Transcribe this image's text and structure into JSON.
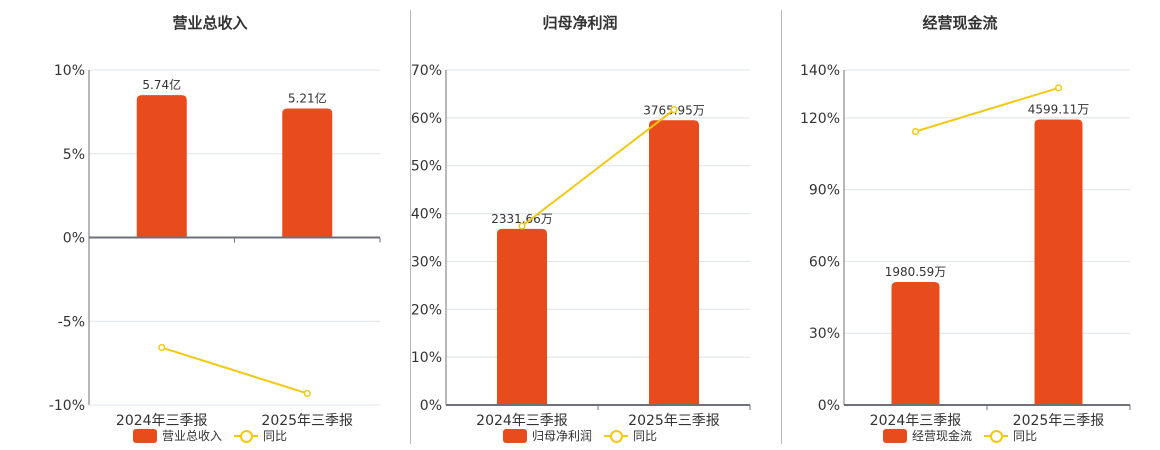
{
  "colors": {
    "bar": "#E84C1C",
    "line": "#F2C811",
    "grid": "#dde3ec",
    "axis": "#6e7079",
    "text": "#333333"
  },
  "charts": [
    {
      "title": "营业总收入",
      "legend": {
        "bar": "营业总收入",
        "line": "同比"
      }
    },
    {
      "title": "归母净利润",
      "legend": {
        "bar": "归母净利润",
        "line": "同比"
      }
    },
    {
      "title": "经营现金流",
      "legend": {
        "bar": "经营现金流",
        "line": "同比"
      }
    }
  ],
  "chart_data": [
    {
      "type": "bar+line",
      "title": "营业总收入",
      "categories": [
        "2024年三季报",
        "2025年三季报"
      ],
      "series": [
        {
          "name": "营业总收入",
          "type": "bar",
          "labels": [
            "5.74亿",
            "5.21亿"
          ],
          "values_yi": [
            5.74,
            5.21
          ],
          "bar_height_pct_axis": [
            8.5,
            7.7
          ]
        },
        {
          "name": "同比",
          "type": "line",
          "values": [
            -6.57,
            -9.31
          ],
          "unit": "%"
        }
      ],
      "yaxis": {
        "ticks": [
          "10%",
          "5%",
          "0%",
          "-5%",
          "-10%"
        ],
        "ylim": [
          -10,
          10
        ]
      },
      "grid": true,
      "legend_position": "bottom"
    },
    {
      "type": "bar+line",
      "title": "归母净利润",
      "categories": [
        "2024年三季报",
        "2025年三季报"
      ],
      "series": [
        {
          "name": "归母净利润",
          "type": "bar",
          "labels": [
            "2331.66万",
            "3765.95万"
          ],
          "values_wan": [
            2331.66,
            3765.95
          ],
          "bar_height_pct_axis": [
            36.8,
            59.5
          ]
        },
        {
          "name": "同比",
          "type": "line",
          "values": [
            37.4,
            61.7
          ],
          "unit": "%"
        }
      ],
      "yaxis": {
        "ticks": [
          "70%",
          "60%",
          "50%",
          "40%",
          "30%",
          "20%",
          "10%",
          "0%"
        ],
        "ylim": [
          0,
          70
        ]
      },
      "grid": true,
      "legend_position": "bottom"
    },
    {
      "type": "bar+line",
      "title": "经营现金流",
      "categories": [
        "2024年三季报",
        "2025年三季报"
      ],
      "series": [
        {
          "name": "经营现金流",
          "type": "bar",
          "labels": [
            "1980.59万",
            "4599.11万"
          ],
          "values_wan": [
            1980.59,
            4599.11
          ],
          "bar_height_pct_axis": [
            51.4,
            119.3
          ]
        },
        {
          "name": "同比",
          "type": "line",
          "values": [
            114.3,
            132.5
          ],
          "unit": "%"
        }
      ],
      "yaxis": {
        "ticks": [
          "140%",
          "120%",
          "90%",
          "60%",
          "30%",
          "0%"
        ],
        "ylim": [
          0,
          140
        ]
      },
      "grid": true,
      "legend_position": "bottom"
    }
  ]
}
